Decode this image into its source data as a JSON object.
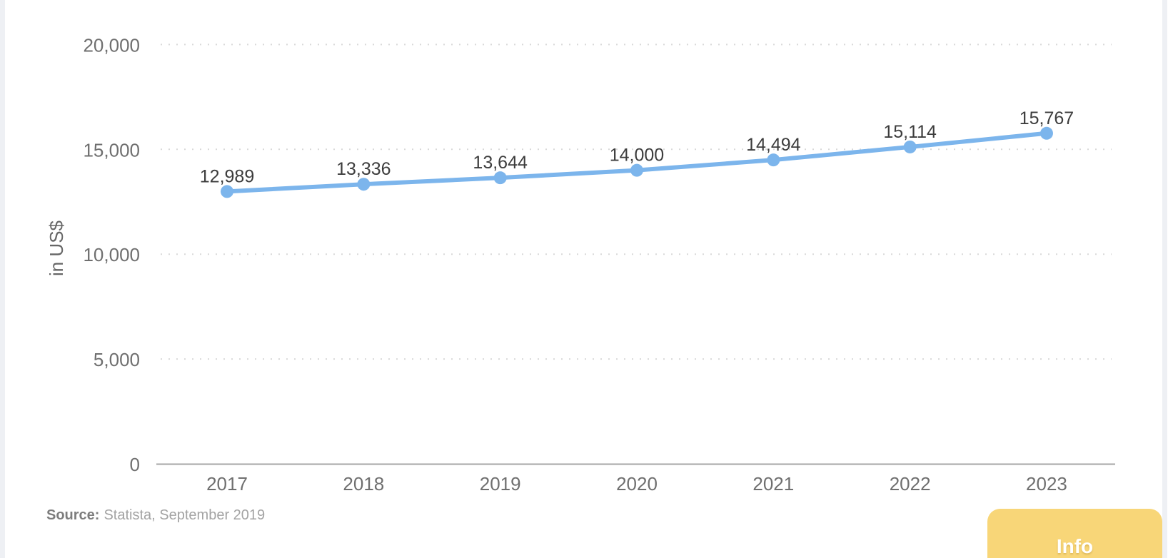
{
  "chart_data": {
    "type": "line",
    "categories": [
      "2017",
      "2018",
      "2019",
      "2020",
      "2021",
      "2022",
      "2023"
    ],
    "values": [
      12989,
      13336,
      13644,
      14000,
      14494,
      15114,
      15767
    ],
    "value_labels": [
      "12,989",
      "13,336",
      "13,644",
      "14,000",
      "14,494",
      "15,114",
      "15,767"
    ],
    "title": "",
    "xlabel": "",
    "ylabel": "in US$",
    "ylim": [
      0,
      20000
    ],
    "yticks": [
      {
        "value": 0,
        "label": "0"
      },
      {
        "value": 5000,
        "label": "5,000"
      },
      {
        "value": 10000,
        "label": "10,000"
      },
      {
        "value": 15000,
        "label": "15,000"
      },
      {
        "value": 20000,
        "label": "20,000"
      }
    ],
    "grid": "horizontal-dotted",
    "legend": "none",
    "line_color": "#7cb5ec",
    "marker_color": "#7cb5ec",
    "gridline_color": "#d9d9d9",
    "axis_line_color": "#a6a6a6"
  },
  "source": {
    "prefix": "Source:",
    "text": "Statista, September 2019"
  },
  "info_button": {
    "label": "Info",
    "color": "#f8d678"
  }
}
